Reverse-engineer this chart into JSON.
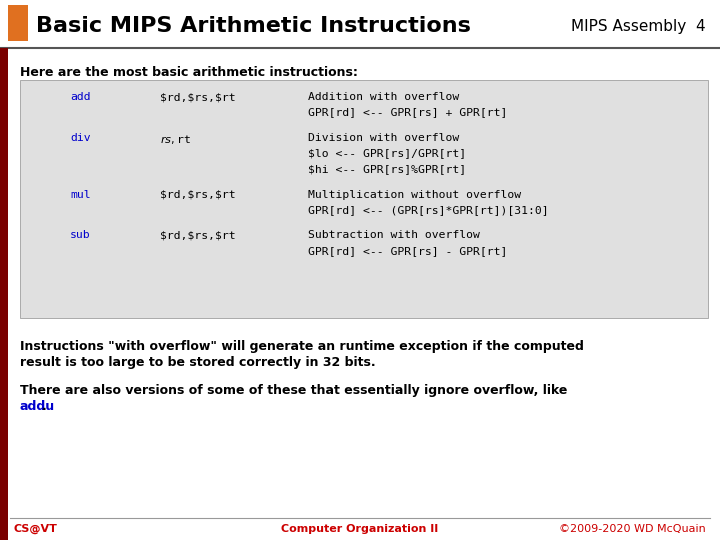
{
  "title": "Basic MIPS Arithmetic Instructions",
  "subtitle_right": "MIPS Assembly  4",
  "title_color": "#000000",
  "subtitle_color": "#000000",
  "orange_rect_color": "#e07020",
  "dark_red_bar": "#7a0000",
  "slide_bg": "#ffffff",
  "table_bg": "#e0e0e0",
  "intro_text": "Here are the most basic arithmetic instructions:",
  "instructions": [
    {
      "cmd": "add",
      "args": "$rd,$rs,$rt",
      "desc_lines": [
        "Addition with overflow",
        "GPR[rd] <-- GPR[rs] + GPR[rt]"
      ]
    },
    {
      "cmd": "div",
      "args": "$rs,$rt",
      "desc_lines": [
        "Division with overflow",
        "$lo <-- GPR[rs]/GPR[rt]",
        "$hi <-- GPR[rs]%GPR[rt]"
      ]
    },
    {
      "cmd": "mul",
      "args": "$rd,$rs,$rt",
      "desc_lines": [
        "Multiplication without overflow",
        "GPR[rd] <-- (GPR[rs]*GPR[rt])[31:0]"
      ]
    },
    {
      "cmd": "sub",
      "args": "$rd,$rs,$rt",
      "desc_lines": [
        "Subtraction with overflow",
        "GPR[rd] <-- GPR[rs] - GPR[rt]"
      ]
    }
  ],
  "body_text1_line1": "Instructions \"with overflow\" will generate an runtime exception if the computed",
  "body_text1_line2": "result is too large to be stored correctly in 32 bits.",
  "body_text2_line1": "There are also versions of some of these that essentially ignore overflow, like",
  "body_text2_link": "addu",
  "body_text2_after": ".",
  "footer_left": "CS@VT",
  "footer_center": "Computer Organization II",
  "footer_right": "©2009-2020 WD McQuain",
  "footer_color": "#cc0000",
  "cmd_color": "#0000cc",
  "args_color": "#000000",
  "mono_desc_color": "#000000",
  "link_color": "#0000cc",
  "header_line_color": "#555555",
  "left_bar_color": "#7a0000"
}
